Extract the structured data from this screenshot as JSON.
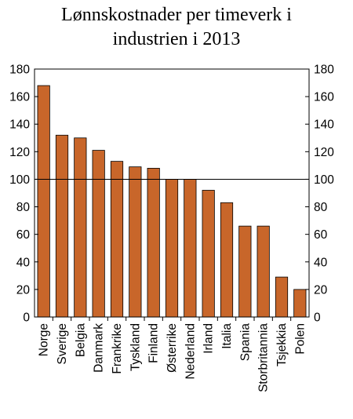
{
  "chart_data": {
    "type": "bar",
    "title_line1": "Lønnskostnader per timeverk i",
    "title_line2": "industrien i 2013",
    "categories": [
      "Norge",
      "Sverige",
      "Belgia",
      "Danmark",
      "Frankrike",
      "Tyskland",
      "Finland",
      "Østerrike",
      "Nederland",
      "Irland",
      "Italia",
      "Spania",
      "Storbritannia",
      "Tsjekkia",
      "Polen"
    ],
    "values": [
      168,
      132,
      130,
      121,
      113,
      109,
      108,
      100,
      100,
      92,
      83,
      66,
      66,
      29,
      20
    ],
    "ylim": [
      0,
      180
    ],
    "yticks": [
      0,
      20,
      40,
      60,
      80,
      100,
      120,
      140,
      160,
      180
    ],
    "reference_line": 100,
    "bar_color": "#C8662A",
    "grid": false,
    "legend": "none"
  }
}
